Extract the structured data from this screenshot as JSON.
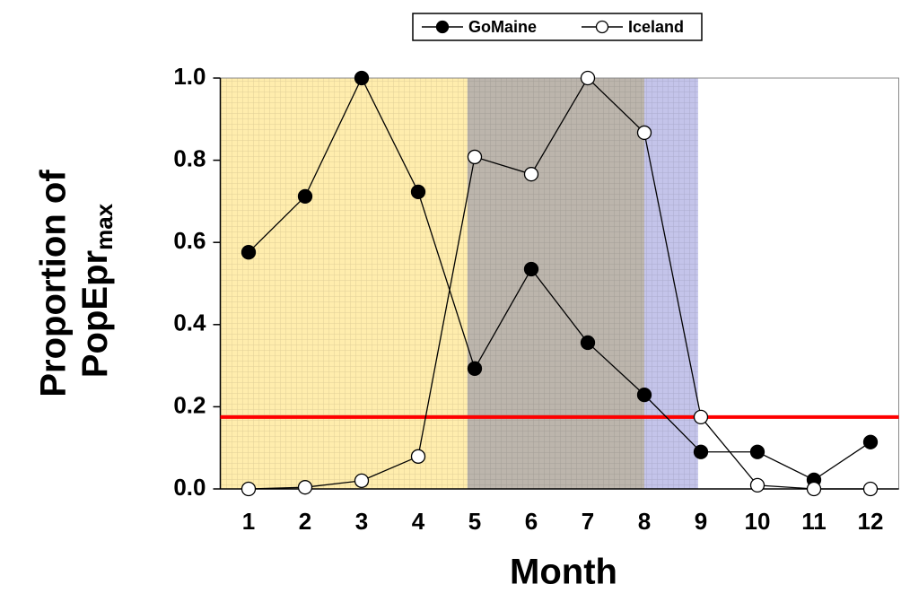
{
  "chart_data": {
    "type": "line",
    "x_label": "Month",
    "y_label_line1": "Proportion of",
    "y_label_line2": "PopEpr",
    "y_label_sub": "max",
    "x": [
      1,
      2,
      3,
      4,
      5,
      6,
      7,
      8,
      9,
      10,
      11,
      12
    ],
    "xlim": [
      0.5,
      12.5
    ],
    "ylim": [
      0,
      1
    ],
    "yticks": [
      {
        "value": 0,
        "label": "0.0"
      },
      0.2,
      0.4,
      0.6,
      0.8,
      {
        "value": 1,
        "label": "1.0"
      }
    ],
    "series": [
      {
        "name": "GoMaine",
        "color": "#000000",
        "marker": "filled",
        "values": [
          0.576,
          0.712,
          1.0,
          0.723,
          0.293,
          0.535,
          0.356,
          0.229,
          0.09,
          0.09,
          0.022,
          0.114
        ]
      },
      {
        "name": "Iceland",
        "color": "#000000",
        "marker": "open",
        "values": [
          0.0,
          0.004,
          0.02,
          0.079,
          0.808,
          0.766,
          1.0,
          0.867,
          0.175,
          0.009,
          0.0,
          0.0
        ]
      }
    ],
    "shaded_regions": [
      {
        "from": 0.5,
        "to": 4.87,
        "color": "#ffd84a"
      },
      {
        "from": 4.87,
        "to": 8.0,
        "color": "#6b5a48"
      },
      {
        "from": 8.0,
        "to": 8.95,
        "color": "#7c7cd0"
      }
    ],
    "threshold": {
      "value": 0.175,
      "color": "#ff0000"
    },
    "legend_position": "top"
  }
}
